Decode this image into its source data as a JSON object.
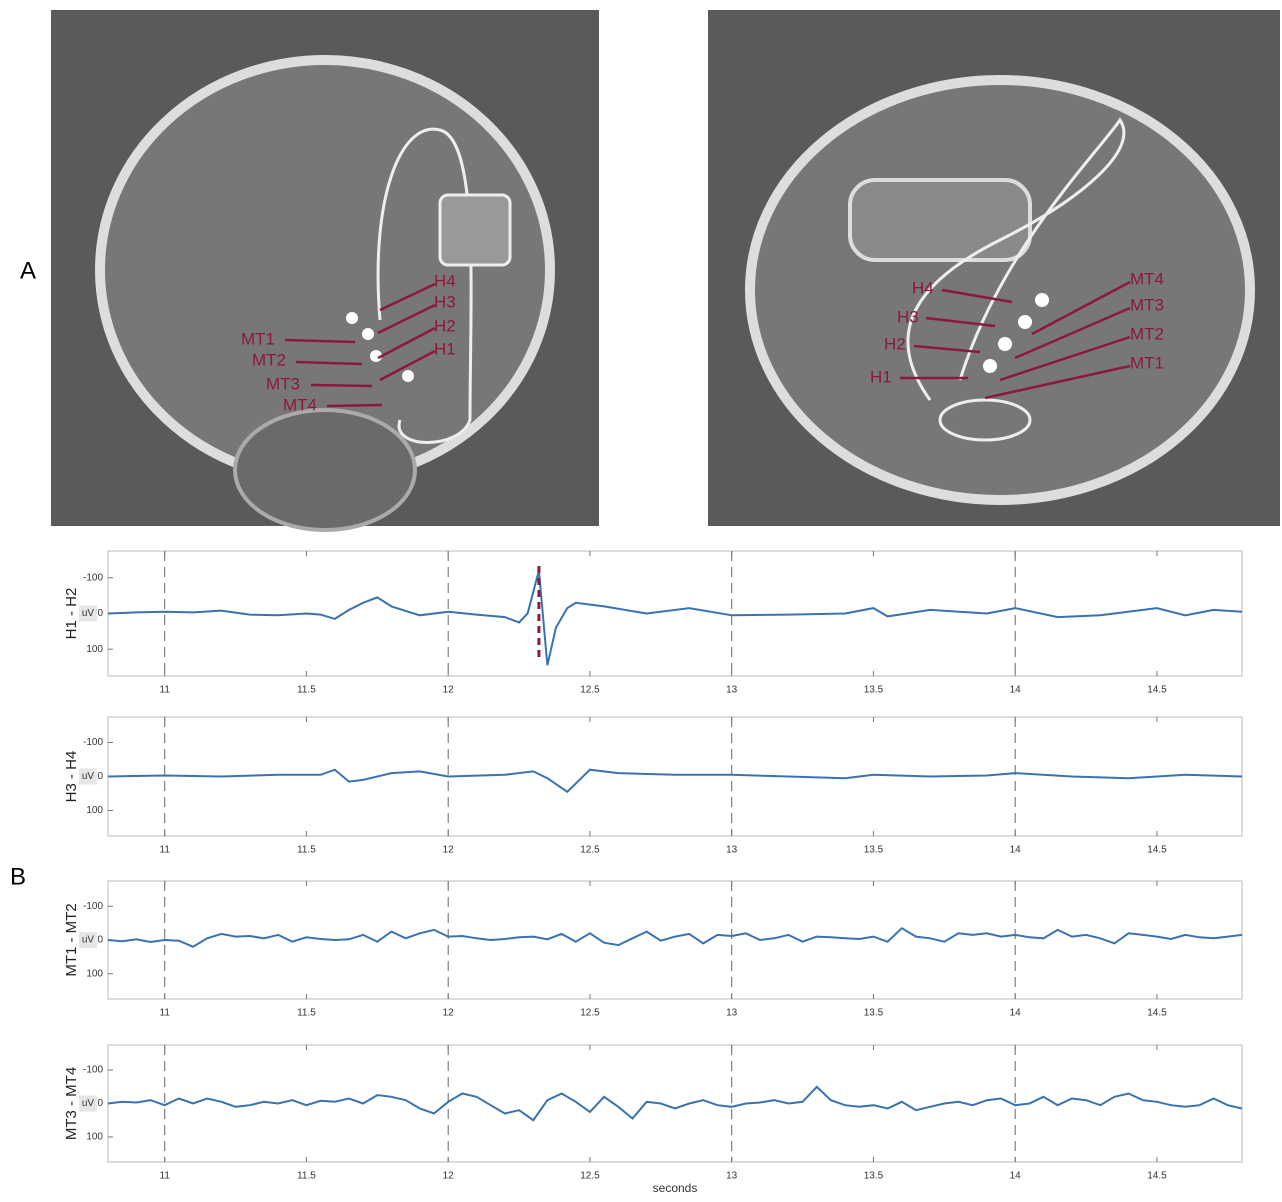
{
  "panel_labels": [
    "A",
    "B"
  ],
  "images": [
    {
      "electrodes": [
        "H4",
        "H3",
        "H2",
        "H1",
        "MT1",
        "MT2",
        "MT3",
        "MT4"
      ]
    },
    {
      "electrodes": [
        "MT4",
        "MT3",
        "MT2",
        "MT1",
        "H4",
        "H3",
        "H2",
        "H1"
      ]
    }
  ],
  "x_axis_label": "seconds",
  "chart_data": [
    {
      "type": "line",
      "ylabel": "H1 - H2",
      "unit_label": "uV",
      "color": "#3a72b0",
      "xlim": [
        10.8,
        14.8
      ],
      "xticks": [
        11,
        11.5,
        12,
        12.5,
        13,
        13.5,
        14,
        14.5
      ],
      "ylim": [
        175,
        -175
      ],
      "yticks": [
        -100,
        0,
        100
      ],
      "dashed_lines": [
        11,
        12,
        13,
        14
      ],
      "event_marker": 12.32,
      "event_color": "#8b1a3a",
      "x": [
        10.8,
        10.9,
        11.0,
        11.1,
        11.2,
        11.3,
        11.4,
        11.5,
        11.55,
        11.6,
        11.65,
        11.7,
        11.75,
        11.8,
        11.9,
        12.0,
        12.1,
        12.2,
        12.25,
        12.28,
        12.32,
        12.35,
        12.38,
        12.42,
        12.45,
        12.55,
        12.7,
        12.85,
        13.0,
        13.2,
        13.4,
        13.5,
        13.55,
        13.7,
        13.9,
        14.0,
        14.15,
        14.3,
        14.5,
        14.6,
        14.7,
        14.8
      ],
      "values": [
        0,
        -3,
        -5,
        -3,
        -8,
        3,
        5,
        0,
        3,
        15,
        -10,
        -30,
        -45,
        -20,
        5,
        -5,
        3,
        10,
        25,
        0,
        -120,
        145,
        40,
        -15,
        -30,
        -20,
        0,
        -15,
        5,
        3,
        0,
        -15,
        8,
        -10,
        0,
        -15,
        10,
        5,
        -15,
        5,
        -10,
        -5
      ]
    },
    {
      "type": "line",
      "ylabel": "H3 - H4",
      "unit_label": "uV",
      "color": "#3a72b0",
      "xlim": [
        10.8,
        14.8
      ],
      "xticks": [
        11,
        11.5,
        12,
        12.5,
        13,
        13.5,
        14,
        14.5
      ],
      "ylim": [
        175,
        -175
      ],
      "yticks": [
        -100,
        0,
        100
      ],
      "dashed_lines": [
        11,
        12,
        13,
        14
      ],
      "x": [
        10.8,
        11.0,
        11.2,
        11.4,
        11.55,
        11.6,
        11.65,
        11.7,
        11.8,
        11.9,
        12.0,
        12.2,
        12.3,
        12.35,
        12.42,
        12.5,
        12.6,
        12.8,
        13.0,
        13.2,
        13.4,
        13.5,
        13.7,
        13.9,
        14.0,
        14.2,
        14.4,
        14.6,
        14.8
      ],
      "values": [
        0,
        -3,
        0,
        -5,
        -5,
        -20,
        15,
        10,
        -10,
        -15,
        0,
        -5,
        -15,
        5,
        45,
        -20,
        -10,
        -5,
        -5,
        0,
        5,
        -5,
        0,
        -3,
        -10,
        0,
        5,
        -5,
        0
      ]
    },
    {
      "type": "line",
      "ylabel": "MT1 - MT2",
      "unit_label": "uV",
      "color": "#3a72b0",
      "xlim": [
        10.8,
        14.8
      ],
      "xticks": [
        11,
        11.5,
        12,
        12.5,
        13,
        13.5,
        14,
        14.5
      ],
      "ylim": [
        175,
        -175
      ],
      "yticks": [
        -100,
        0,
        100
      ],
      "dashed_lines": [
        11,
        12,
        13,
        14
      ],
      "x": [
        10.8,
        10.85,
        10.9,
        10.95,
        11.0,
        11.05,
        11.1,
        11.15,
        11.2,
        11.25,
        11.3,
        11.35,
        11.4,
        11.45,
        11.5,
        11.55,
        11.6,
        11.65,
        11.7,
        11.75,
        11.8,
        11.85,
        11.9,
        11.95,
        12.0,
        12.05,
        12.1,
        12.15,
        12.2,
        12.25,
        12.3,
        12.35,
        12.4,
        12.45,
        12.5,
        12.55,
        12.6,
        12.65,
        12.7,
        12.75,
        12.8,
        12.85,
        12.9,
        12.95,
        13.0,
        13.05,
        13.1,
        13.15,
        13.2,
        13.25,
        13.3,
        13.35,
        13.4,
        13.45,
        13.5,
        13.55,
        13.6,
        13.65,
        13.7,
        13.75,
        13.8,
        13.85,
        13.9,
        13.95,
        14.0,
        14.05,
        14.1,
        14.15,
        14.2,
        14.25,
        14.3,
        14.35,
        14.4,
        14.45,
        14.5,
        14.55,
        14.6,
        14.65,
        14.7,
        14.75,
        14.8
      ],
      "values": [
        0,
        4,
        -2,
        6,
        0,
        2,
        20,
        -5,
        -18,
        -10,
        -12,
        -5,
        -15,
        5,
        -8,
        -3,
        0,
        -2,
        -15,
        5,
        -25,
        -5,
        -20,
        -30,
        -10,
        -12,
        -5,
        0,
        -3,
        -8,
        -10,
        -2,
        -18,
        5,
        -20,
        8,
        15,
        -5,
        -25,
        2,
        -10,
        -18,
        10,
        -15,
        -12,
        -20,
        0,
        -5,
        -15,
        5,
        -10,
        -8,
        -5,
        -3,
        -10,
        5,
        -35,
        -10,
        -5,
        5,
        -20,
        -15,
        -20,
        -10,
        -15,
        -8,
        -5,
        -30,
        -10,
        -15,
        -5,
        10,
        -20,
        -15,
        -10,
        -3,
        -15,
        -8,
        -5,
        -10,
        -15
      ]
    },
    {
      "type": "line",
      "ylabel": "MT3 - MT4",
      "unit_label": "uV",
      "color": "#3a72b0",
      "xlim": [
        10.8,
        14.8
      ],
      "xticks": [
        11,
        11.5,
        12,
        12.5,
        13,
        13.5,
        14,
        14.5
      ],
      "ylim": [
        175,
        -175
      ],
      "yticks": [
        -100,
        0,
        100
      ],
      "dashed_lines": [
        11,
        12,
        13,
        14
      ],
      "x": [
        10.8,
        10.85,
        10.9,
        10.95,
        11.0,
        11.05,
        11.1,
        11.15,
        11.2,
        11.25,
        11.3,
        11.35,
        11.4,
        11.45,
        11.5,
        11.55,
        11.6,
        11.65,
        11.7,
        11.75,
        11.8,
        11.85,
        11.9,
        11.95,
        12.0,
        12.05,
        12.1,
        12.15,
        12.2,
        12.25,
        12.3,
        12.35,
        12.4,
        12.45,
        12.5,
        12.55,
        12.6,
        12.65,
        12.7,
        12.75,
        12.8,
        12.85,
        12.9,
        12.95,
        13.0,
        13.05,
        13.1,
        13.15,
        13.2,
        13.25,
        13.3,
        13.35,
        13.4,
        13.45,
        13.5,
        13.55,
        13.6,
        13.65,
        13.7,
        13.75,
        13.8,
        13.85,
        13.9,
        13.95,
        14.0,
        14.05,
        14.1,
        14.15,
        14.2,
        14.25,
        14.3,
        14.35,
        14.4,
        14.45,
        14.5,
        14.55,
        14.6,
        14.65,
        14.7,
        14.75,
        14.8
      ],
      "values": [
        0,
        -5,
        -3,
        -10,
        5,
        -15,
        0,
        -15,
        -5,
        10,
        5,
        -5,
        0,
        -10,
        5,
        -8,
        -5,
        -15,
        0,
        -25,
        -20,
        -10,
        15,
        30,
        -5,
        -30,
        -20,
        5,
        30,
        20,
        50,
        -10,
        -30,
        -5,
        25,
        -20,
        10,
        45,
        -5,
        0,
        15,
        0,
        -10,
        5,
        10,
        0,
        -3,
        -10,
        0,
        -5,
        -50,
        -10,
        5,
        10,
        5,
        15,
        -5,
        20,
        10,
        0,
        -5,
        5,
        -10,
        -15,
        5,
        0,
        -20,
        5,
        -15,
        -10,
        5,
        -20,
        -30,
        -10,
        -5,
        5,
        10,
        5,
        -15,
        5,
        15
      ]
    }
  ]
}
